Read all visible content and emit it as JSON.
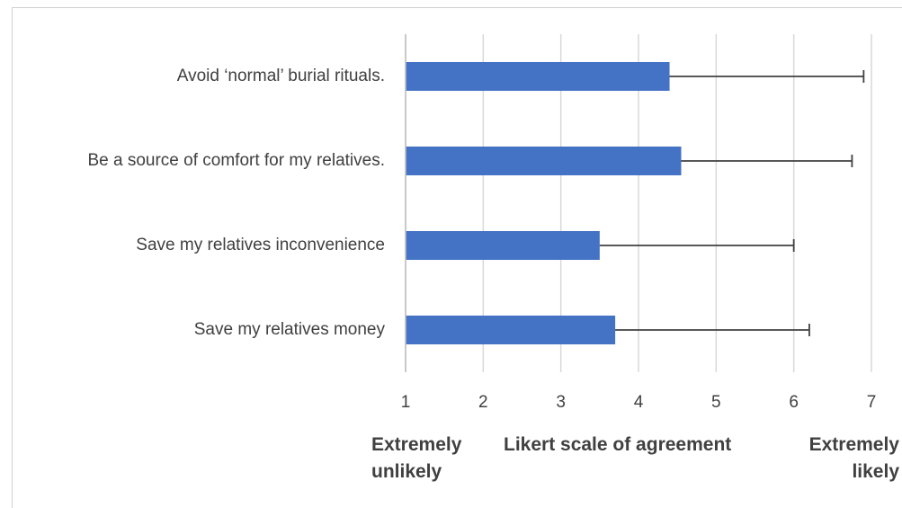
{
  "chart_data": {
    "type": "hbar",
    "categories": [
      "Avoid ‘normal’ burial rituals.",
      "Be a source of comfort for my relatives.",
      "Save my relatives inconvenience",
      "Save my relatives money"
    ],
    "values": [
      4.4,
      4.55,
      3.5,
      3.7
    ],
    "errors": [
      2.5,
      2.2,
      2.5,
      2.5
    ],
    "color": "#4472c4",
    "xlim": [
      1,
      7
    ],
    "xticks": [
      1,
      2,
      3,
      4,
      5,
      6,
      7
    ],
    "grid": true,
    "x_label": "Likert scale of agreement",
    "annotations": [
      "Extremely unlikely",
      "Extremely likely"
    ]
  }
}
